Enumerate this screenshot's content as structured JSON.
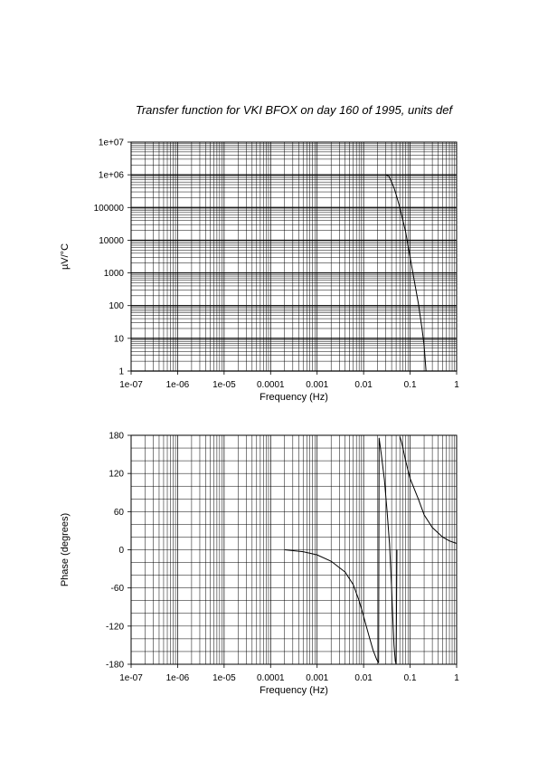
{
  "title": "Transfer function for VKI BFOX on day 160 of 1995, units def",
  "chart_data": [
    {
      "type": "line",
      "name": "amplitude",
      "xlabel": "Frequency (Hz)",
      "ylabel": "µV/°C",
      "xscale": "log",
      "yscale": "log",
      "xlim": [
        1e-07,
        1
      ],
      "ylim": [
        1,
        10000000.0
      ],
      "grid": true,
      "x_tick_labels": [
        "1e-07",
        "1e-06",
        "1e-05",
        "0.0001",
        "0.001",
        "0.01",
        "0.1",
        "1"
      ],
      "y_tick_labels": [
        "1",
        "10",
        "100",
        "1000",
        "10000",
        "100000",
        "1e+06",
        "1e+07"
      ],
      "series": [
        {
          "x": [
            0.03,
            0.035,
            0.04,
            0.045,
            0.05,
            0.06,
            0.07,
            0.08,
            0.09,
            0.1,
            0.12,
            0.15,
            0.18,
            0.2,
            0.22
          ],
          "values": [
            1000000,
            900000,
            600000,
            400000,
            250000,
            100000,
            40000,
            18000,
            7000,
            3000,
            700,
            120,
            20,
            6,
            1
          ]
        }
      ]
    },
    {
      "type": "line",
      "name": "phase",
      "xlabel": "Frequency (Hz)",
      "ylabel": "Phase (degrees)",
      "xscale": "log",
      "yscale": "linear",
      "xlim": [
        1e-07,
        1
      ],
      "ylim": [
        -180,
        180
      ],
      "grid": true,
      "x_tick_labels": [
        "1e-07",
        "1e-06",
        "1e-05",
        "0.0001",
        "0.001",
        "0.01",
        "0.1",
        "1"
      ],
      "y_tick_labels": [
        "-180",
        "-120",
        "-60",
        "0",
        "60",
        "120",
        "180"
      ],
      "series": [
        {
          "x": [
            0.0002,
            0.0005,
            0.001,
            0.002,
            0.004,
            0.006,
            0.008,
            0.01,
            0.013,
            0.016,
            0.019,
            0.021,
            0.0215,
            0.024,
            0.028,
            0.032,
            0.036,
            0.04,
            0.042,
            0.045,
            0.048,
            0.05,
            0.052,
            0.055,
            0.06,
            0.065,
            0.07,
            0.08,
            0.1,
            0.15,
            0.2,
            0.3,
            0.5,
            0.7,
            1.0
          ],
          "values": [
            0,
            -3,
            -8,
            -18,
            -35,
            -55,
            -80,
            -105,
            -135,
            -158,
            -172,
            -178,
            176,
            150,
            110,
            60,
            10,
            -60,
            -100,
            -150,
            -175,
            -180,
            0,
            null,
            178,
            170,
            160,
            140,
            112,
            80,
            55,
            35,
            20,
            14,
            10
          ]
        }
      ]
    }
  ]
}
